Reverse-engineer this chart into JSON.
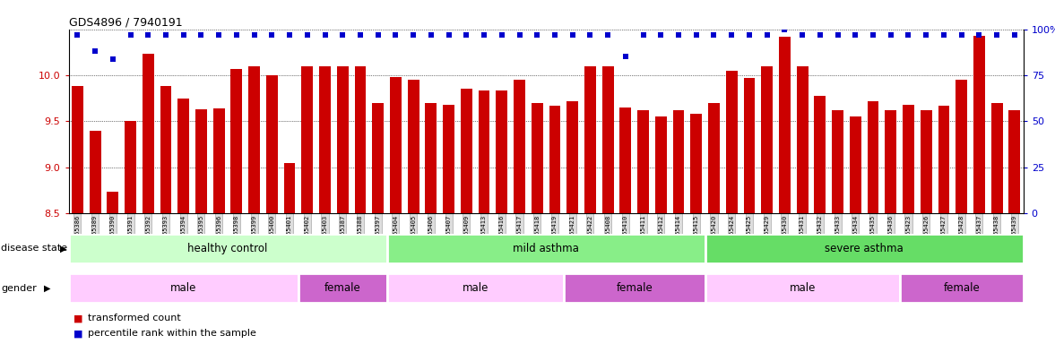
{
  "title": "GDS4896 / 7940191",
  "samples": [
    "GSM665386",
    "GSM665389",
    "GSM665390",
    "GSM665391",
    "GSM665392",
    "GSM665393",
    "GSM665394",
    "GSM665395",
    "GSM665396",
    "GSM665398",
    "GSM665399",
    "GSM665400",
    "GSM665401",
    "GSM665402",
    "GSM665403",
    "GSM665387",
    "GSM665388",
    "GSM665397",
    "GSM665404",
    "GSM665405",
    "GSM665406",
    "GSM665407",
    "GSM665409",
    "GSM665413",
    "GSM665416",
    "GSM665417",
    "GSM665418",
    "GSM665419",
    "GSM665421",
    "GSM665422",
    "GSM665408",
    "GSM665410",
    "GSM665411",
    "GSM665412",
    "GSM665414",
    "GSM665415",
    "GSM665420",
    "GSM665424",
    "GSM665425",
    "GSM665429",
    "GSM665430",
    "GSM665431",
    "GSM665432",
    "GSM665433",
    "GSM665434",
    "GSM665435",
    "GSM665436",
    "GSM665423",
    "GSM665426",
    "GSM665427",
    "GSM665428",
    "GSM665437",
    "GSM665438",
    "GSM665439"
  ],
  "bar_values": [
    9.88,
    9.4,
    8.73,
    9.5,
    10.23,
    9.88,
    9.75,
    9.63,
    9.64,
    10.07,
    10.1,
    10.0,
    9.05,
    10.1,
    10.1,
    10.1,
    10.1,
    9.7,
    9.98,
    9.95,
    9.7,
    9.68,
    9.85,
    9.83,
    9.83,
    9.95,
    9.7,
    9.67,
    9.72,
    10.1,
    10.1,
    9.65,
    9.62,
    9.55,
    9.62,
    9.58,
    9.7,
    10.05,
    9.97,
    10.1,
    10.42,
    10.1,
    9.78,
    9.62,
    9.55,
    9.72,
    9.62,
    9.68,
    9.62,
    9.67,
    9.95,
    10.43,
    9.7,
    9.62
  ],
  "dot_values": [
    97,
    88,
    84,
    97,
    97,
    97,
    97,
    97,
    97,
    97,
    97,
    97,
    97,
    97,
    97,
    97,
    97,
    97,
    97,
    97,
    97,
    97,
    97,
    97,
    97,
    97,
    97,
    97,
    97,
    97,
    97,
    85,
    97,
    97,
    97,
    97,
    97,
    97,
    97,
    97,
    100,
    97,
    97,
    97,
    97,
    97,
    97,
    97,
    97,
    97,
    97,
    97,
    97,
    97
  ],
  "disease_state": [
    {
      "label": "healthy control",
      "start": 0,
      "end": 18,
      "color": "#ccffcc"
    },
    {
      "label": "mild asthma",
      "start": 18,
      "end": 36,
      "color": "#88ee88"
    },
    {
      "label": "severe asthma",
      "start": 36,
      "end": 54,
      "color": "#66dd66"
    }
  ],
  "gender": [
    {
      "label": "male",
      "start": 0,
      "end": 13,
      "color": "#ffccff"
    },
    {
      "label": "female",
      "start": 13,
      "end": 18,
      "color": "#cc66cc"
    },
    {
      "label": "male",
      "start": 18,
      "end": 28,
      "color": "#ffccff"
    },
    {
      "label": "female",
      "start": 28,
      "end": 36,
      "color": "#cc66cc"
    },
    {
      "label": "male",
      "start": 36,
      "end": 47,
      "color": "#ffccff"
    },
    {
      "label": "female",
      "start": 47,
      "end": 54,
      "color": "#cc66cc"
    }
  ],
  "ylim": [
    8.5,
    10.5
  ],
  "yticks": [
    8.5,
    9.0,
    9.5,
    10.0
  ],
  "right_yticks": [
    0,
    25,
    50,
    75,
    100
  ],
  "bar_color": "#cc0000",
  "dot_color": "#0000cc"
}
